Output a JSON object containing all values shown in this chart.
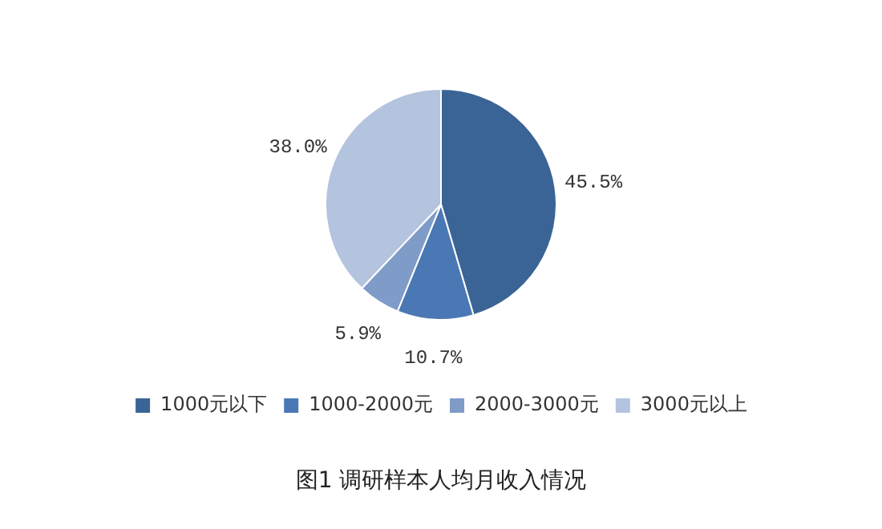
{
  "chart_data": {
    "type": "pie",
    "title": "图1 调研样本人均月收入情况",
    "categories": [
      "1000元以下",
      "1000-2000元",
      "2000-3000元",
      "3000元以上"
    ],
    "values": [
      45.5,
      10.7,
      5.9,
      38.0
    ],
    "value_labels": [
      "45.5%",
      "10.7%",
      "5.9%",
      "38.0%"
    ],
    "colors": [
      "#3b6496",
      "#4a78b4",
      "#7f9bc8",
      "#b4c3de"
    ],
    "legend": "bottom"
  }
}
